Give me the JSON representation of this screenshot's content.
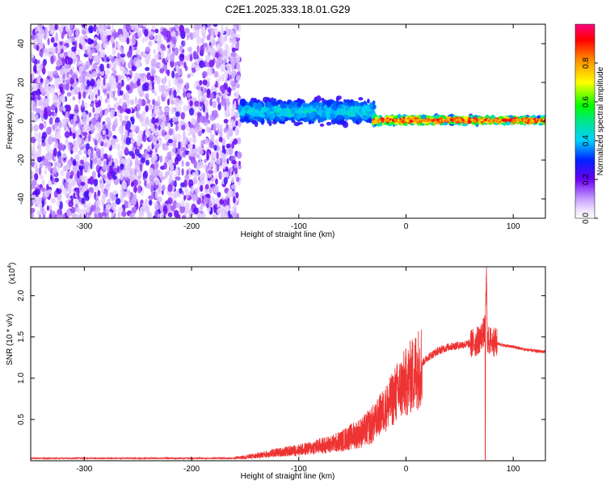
{
  "title": "C2E1.2025.333.18.01.G29",
  "colors": {
    "snr_line": "#ee3333",
    "axis": "#000000",
    "background": "#ffffff"
  },
  "chart_data": [
    {
      "type": "heatmap",
      "name": "spectrogram",
      "xlabel": "Height of straight line (km)",
      "ylabel": "Frequency (Hz)",
      "xlim": [
        -350,
        130
      ],
      "ylim": [
        -50,
        50
      ],
      "xticks": [
        -300,
        -200,
        -100,
        0,
        100
      ],
      "xtick_labels": [
        "-300",
        "-200",
        "-100",
        "0",
        "100"
      ],
      "yticks": [
        -40,
        -20,
        0,
        20,
        40
      ],
      "ytick_labels": [
        "-40",
        "-20",
        "0",
        "20",
        "40"
      ],
      "regions": [
        {
          "label": "noise",
          "x_range": [
            -350,
            -155
          ],
          "freq_range": [
            -50,
            50
          ],
          "amplitude": [
            0.05,
            0.25
          ]
        },
        {
          "label": "signal onset",
          "x_range": [
            -155,
            -30
          ],
          "freq_center": 5,
          "freq_halfwidth": 8,
          "amplitude": [
            0.2,
            0.5
          ]
        },
        {
          "label": "carrier",
          "x_range": [
            -30,
            130
          ],
          "freq_center": 0.5,
          "freq_halfwidth": 3,
          "amplitude": [
            0.5,
            0.95
          ]
        }
      ],
      "colorbar": {
        "label": "Normalized spectral amplitude",
        "range": [
          0,
          1
        ],
        "ticks": [
          0.0,
          0.2,
          0.4,
          0.6,
          0.8
        ],
        "tick_labels": [
          "0.0",
          "0.2",
          "0.4",
          "0.6",
          "0.8"
        ]
      }
    },
    {
      "type": "line",
      "name": "snr",
      "xlabel": "Height of straight line (km)",
      "ylabel": "SNR (10 * v/v)",
      "multiplier_label": "(x10",
      "multiplier_exp": "4",
      "multiplier_close": ")",
      "xlim": [
        -350,
        130
      ],
      "ylim": [
        0,
        2.35
      ],
      "xticks": [
        -300,
        -200,
        -100,
        0,
        100
      ],
      "xtick_labels": [
        "-300",
        "-200",
        "-100",
        "0",
        "100"
      ],
      "yticks": [
        0.5,
        1.0,
        1.5,
        2.0
      ],
      "ytick_labels": [
        "0.5",
        "1.0",
        "1.5",
        "2.0"
      ],
      "series": [
        {
          "name": "SNR",
          "x": [
            -350,
            -300,
            -250,
            -200,
            -160,
            -140,
            -120,
            -100,
            -90,
            -80,
            -70,
            -60,
            -50,
            -40,
            -30,
            -25,
            -20,
            -15,
            -10,
            -5,
            0,
            5,
            10,
            15,
            20,
            30,
            40,
            50,
            60,
            65,
            70,
            74,
            75,
            76,
            80,
            90,
            100,
            110,
            120,
            130
          ],
          "y": [
            0.03,
            0.03,
            0.03,
            0.03,
            0.03,
            0.06,
            0.1,
            0.13,
            0.15,
            0.18,
            0.2,
            0.24,
            0.3,
            0.35,
            0.45,
            0.55,
            0.62,
            0.7,
            0.8,
            0.88,
            0.95,
            1.02,
            1.1,
            1.18,
            1.25,
            1.33,
            1.38,
            1.4,
            1.42,
            1.43,
            1.5,
            1.6,
            2.28,
            1.45,
            1.45,
            1.4,
            1.38,
            1.35,
            1.33,
            1.32
          ]
        }
      ]
    }
  ]
}
